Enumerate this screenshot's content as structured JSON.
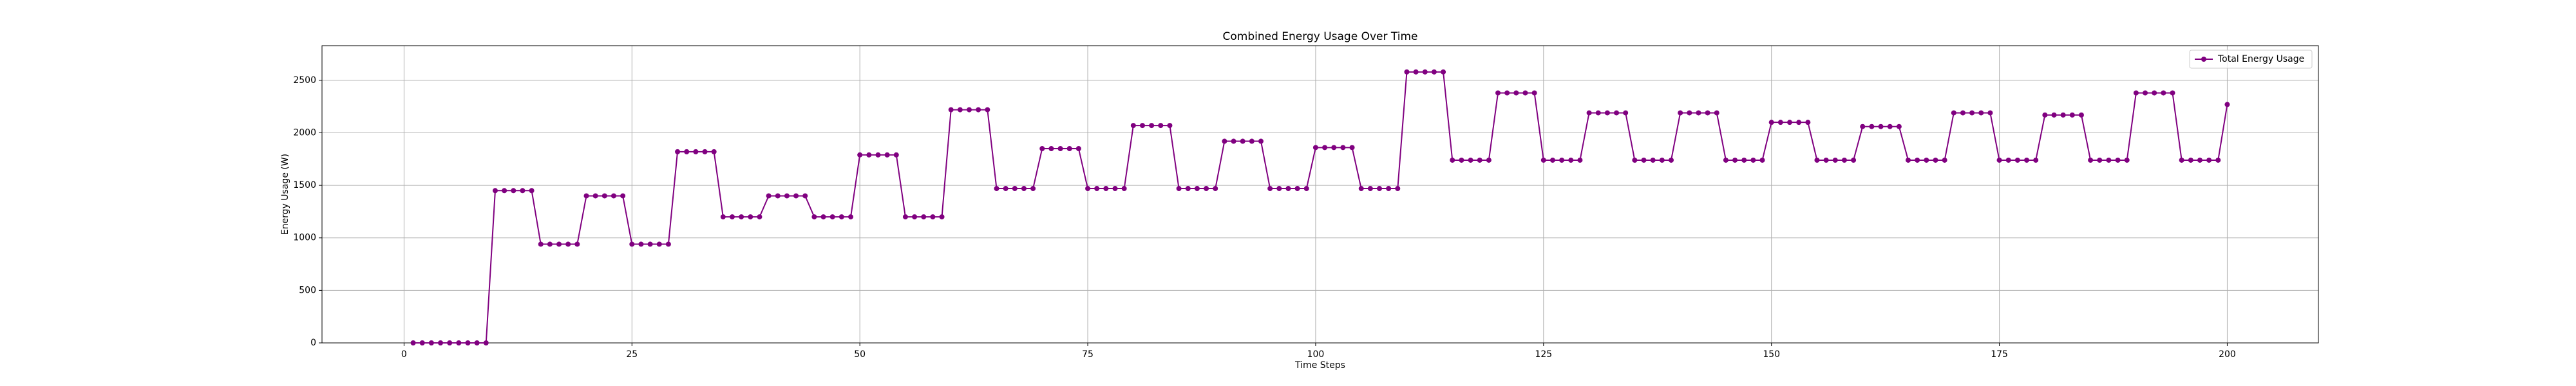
{
  "chart_data": {
    "type": "line",
    "title": "Combined Energy Usage Over Time",
    "xlabel": "Time Steps",
    "ylabel": "Energy Usage (W)",
    "x": [
      1,
      2,
      3,
      4,
      5,
      6,
      7,
      8,
      9,
      10,
      11,
      12,
      13,
      14,
      15,
      16,
      17,
      18,
      19,
      20,
      21,
      22,
      23,
      24,
      25,
      26,
      27,
      28,
      29,
      30,
      31,
      32,
      33,
      34,
      35,
      36,
      37,
      38,
      39,
      40,
      41,
      42,
      43,
      44,
      45,
      46,
      47,
      48,
      49,
      50,
      51,
      52,
      53,
      54,
      55,
      56,
      57,
      58,
      59,
      60,
      61,
      62,
      63,
      64,
      65,
      66,
      67,
      68,
      69,
      70,
      71,
      72,
      73,
      74,
      75,
      76,
      77,
      78,
      79,
      80,
      81,
      82,
      83,
      84,
      85,
      86,
      87,
      88,
      89,
      90,
      91,
      92,
      93,
      94,
      95,
      96,
      97,
      98,
      99,
      100,
      101,
      102,
      103,
      104,
      105,
      106,
      107,
      108,
      109,
      110,
      111,
      112,
      113,
      114,
      115,
      116,
      117,
      118,
      119,
      120,
      121,
      122,
      123,
      124,
      125,
      126,
      127,
      128,
      129,
      130,
      131,
      132,
      133,
      134,
      135,
      136,
      137,
      138,
      139,
      140,
      141,
      142,
      143,
      144,
      145,
      146,
      147,
      148,
      149,
      150,
      151,
      152,
      153,
      154,
      155,
      156,
      157,
      158,
      159,
      160,
      161,
      162,
      163,
      164,
      165,
      166,
      167,
      168,
      169,
      170,
      171,
      172,
      173,
      174,
      175,
      176,
      177,
      178,
      179,
      180,
      181,
      182,
      183,
      184,
      185,
      186,
      187,
      188,
      189,
      190,
      191,
      192,
      193,
      194,
      195,
      196,
      197,
      198,
      199,
      200
    ],
    "series": [
      {
        "name": "Total Energy Usage",
        "color": "#800080",
        "values": [
          0,
          0,
          0,
          0,
          0,
          0,
          0,
          0,
          0,
          1450,
          1450,
          1450,
          1450,
          1450,
          940,
          940,
          940,
          940,
          940,
          1400,
          1400,
          1400,
          1400,
          1400,
          940,
          940,
          940,
          940,
          940,
          1820,
          1820,
          1820,
          1820,
          1820,
          1200,
          1200,
          1200,
          1200,
          1200,
          1400,
          1400,
          1400,
          1400,
          1400,
          1200,
          1200,
          1200,
          1200,
          1200,
          1790,
          1790,
          1790,
          1790,
          1790,
          1200,
          1200,
          1200,
          1200,
          1200,
          2220,
          2220,
          2220,
          2220,
          2220,
          1470,
          1470,
          1470,
          1470,
          1470,
          1850,
          1850,
          1850,
          1850,
          1850,
          1470,
          1470,
          1470,
          1470,
          1470,
          2070,
          2070,
          2070,
          2070,
          2070,
          1470,
          1470,
          1470,
          1470,
          1470,
          1920,
          1920,
          1920,
          1920,
          1920,
          1470,
          1470,
          1470,
          1470,
          1470,
          1860,
          1860,
          1860,
          1860,
          1860,
          1470,
          1470,
          1470,
          1470,
          1470,
          2580,
          2580,
          2580,
          2580,
          2580,
          1740,
          1740,
          1740,
          1740,
          1740,
          2380,
          2380,
          2380,
          2380,
          2380,
          1740,
          1740,
          1740,
          1740,
          1740,
          2190,
          2190,
          2190,
          2190,
          2190,
          1740,
          1740,
          1740,
          1740,
          1740,
          2190,
          2190,
          2190,
          2190,
          2190,
          1740,
          1740,
          1740,
          1740,
          1740,
          2100,
          2100,
          2100,
          2100,
          2100,
          1740,
          1740,
          1740,
          1740,
          1740,
          2060,
          2060,
          2060,
          2060,
          2060,
          1740,
          1740,
          1740,
          1740,
          1740,
          2190,
          2190,
          2190,
          2190,
          2190,
          1740,
          1740,
          1740,
          1740,
          1740,
          2170,
          2170,
          2170,
          2170,
          2170,
          1740,
          1740,
          1740,
          1740,
          1740,
          2380,
          2380,
          2380,
          2380,
          2380,
          1740,
          1740,
          1740,
          1740,
          1740,
          2270
        ]
      }
    ],
    "xlim": [
      -9,
      210
    ],
    "xticks": [
      0,
      25,
      50,
      75,
      100,
      125,
      150,
      175,
      200
    ],
    "ylim": [
      0,
      2830
    ],
    "yticks": [
      0,
      500,
      1000,
      1500,
      2000,
      2500
    ],
    "grid": true,
    "legend": "upper right"
  }
}
